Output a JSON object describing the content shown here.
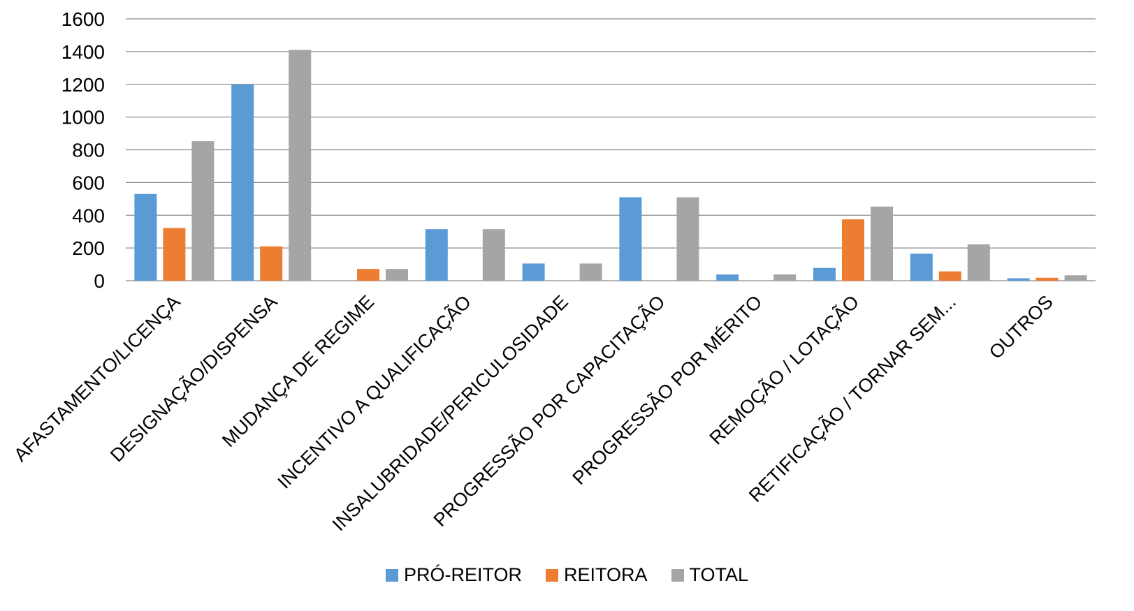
{
  "chart_data": {
    "type": "bar",
    "categories": [
      "AFASTAMENTO/LICENÇA",
      "DESIGNAÇÃO/DISPENSA",
      "MUDANÇA DE REGIME",
      "INCENTIVO A QUALIFICAÇÃO",
      "INSALUBRIDADE/PERICULOSIDADE",
      "PROGRESSÃO POR CAPACITAÇÃO",
      "PROGRESSÃO POR MÉRITO",
      "REMOÇÃO / LOTAÇÃO",
      "RETIFICAÇÃO / TORNAR SEM...",
      "OUTROS"
    ],
    "series": [
      {
        "name": "PRÓ-REITOR",
        "color": "#5B9BD5",
        "values": [
          530,
          1200,
          0,
          315,
          105,
          510,
          38,
          78,
          165,
          15
        ]
      },
      {
        "name": "REITORA",
        "color": "#ED7D31",
        "values": [
          322,
          210,
          72,
          0,
          0,
          0,
          0,
          375,
          57,
          18
        ]
      },
      {
        "name": "TOTAL",
        "color": "#A5A5A5",
        "values": [
          853,
          1410,
          72,
          315,
          105,
          510,
          38,
          453,
          222,
          33
        ]
      }
    ],
    "ylim": [
      0,
      1600
    ],
    "yticks": [
      0,
      200,
      400,
      600,
      800,
      1000,
      1200,
      1400,
      1600
    ],
    "grid": true,
    "legend_position": "bottom",
    "title": "",
    "xlabel": "",
    "ylabel": ""
  }
}
